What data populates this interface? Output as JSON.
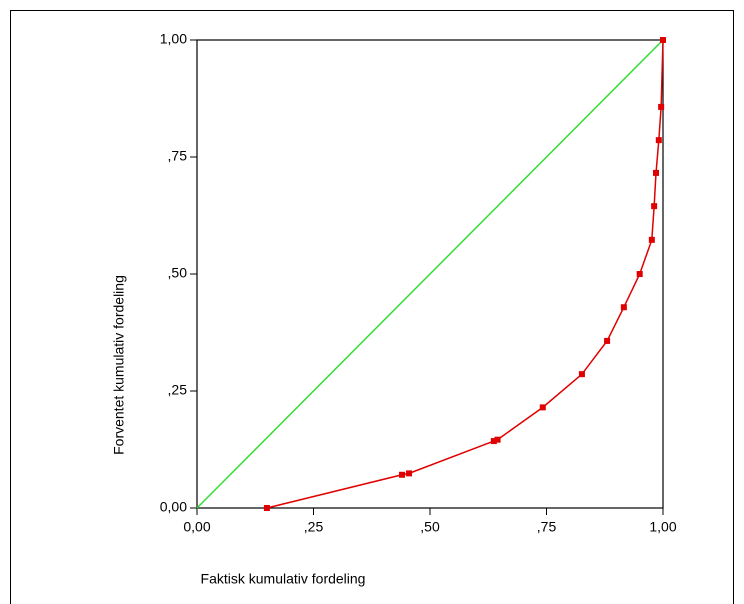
{
  "chart_data": {
    "type": "line",
    "x_label": "Faktisk kumulativ fordeling",
    "y_label": "Forventet kumulativ fordeling",
    "x": [
      0.15,
      0.44,
      0.455,
      0.637,
      0.645,
      0.742,
      0.826,
      0.88,
      0.916,
      0.95,
      0.976,
      0.981,
      0.985,
      0.991,
      0.996,
      1.0
    ],
    "y": [
      0.0,
      0.071,
      0.074,
      0.143,
      0.146,
      0.215,
      0.286,
      0.357,
      0.429,
      0.5,
      0.573,
      0.645,
      0.716,
      0.786,
      0.857,
      1.0
    ],
    "color": "#e00000",
    "markers": true,
    "reference_line": {
      "color": "#33dd33"
    },
    "xlim": [
      0,
      1
    ],
    "ylim": [
      0,
      1
    ],
    "xticks": [
      {
        "value": 0,
        "label": "0,00"
      },
      {
        "value": 0.25,
        "label": ",25"
      },
      {
        "value": 0.5,
        "label": ",50"
      },
      {
        "value": 0.75,
        "label": ",75"
      },
      {
        "value": 1,
        "label": "1,00"
      }
    ],
    "yticks": [
      {
        "value": 0,
        "label": "0,00"
      },
      {
        "value": 0.25,
        "label": ",25"
      },
      {
        "value": 0.5,
        "label": ",50"
      },
      {
        "value": 0.75,
        "label": ",75"
      },
      {
        "value": 1,
        "label": "1,00"
      }
    ],
    "grid": false
  }
}
